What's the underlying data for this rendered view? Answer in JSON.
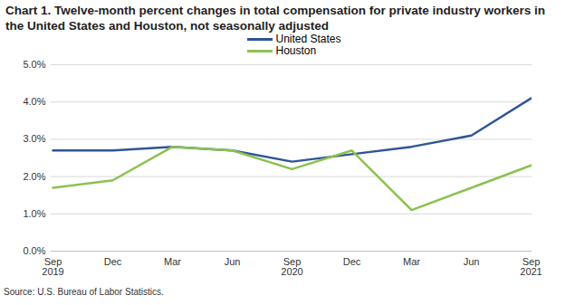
{
  "chart_data": {
    "type": "line",
    "title": "Chart 1. Twelve-month percent changes in total compensation for private industry workers in the United States and Houston, not seasonally adjusted",
    "caption": "Source: U.S. Bureau of Labor Statistics.",
    "categories": [
      "Sep\n2019",
      "Dec",
      "Mar",
      "Jun",
      "Sep\n2020",
      "Dec",
      "Mar",
      "Jun",
      "Sep\n2021"
    ],
    "series": [
      {
        "name": "United States",
        "color": "#2f5597",
        "values": [
          2.7,
          2.7,
          2.8,
          2.7,
          2.4,
          2.6,
          2.8,
          3.1,
          4.1
        ]
      },
      {
        "name": "Houston",
        "color": "#8cc152",
        "values": [
          1.7,
          1.9,
          2.8,
          2.7,
          2.2,
          2.7,
          1.1,
          1.7,
          2.3
        ]
      }
    ],
    "ylim": [
      0,
      5
    ],
    "yticks": [
      {
        "value": 0,
        "label": "0.0%"
      },
      {
        "value": 1,
        "label": "1.0%"
      },
      {
        "value": 2,
        "label": "2.0%"
      },
      {
        "value": 3,
        "label": "3.0%"
      },
      {
        "value": 4,
        "label": "4.0%"
      },
      {
        "value": 5,
        "label": "5.0%"
      }
    ],
    "grid": true,
    "legend": "top"
  }
}
